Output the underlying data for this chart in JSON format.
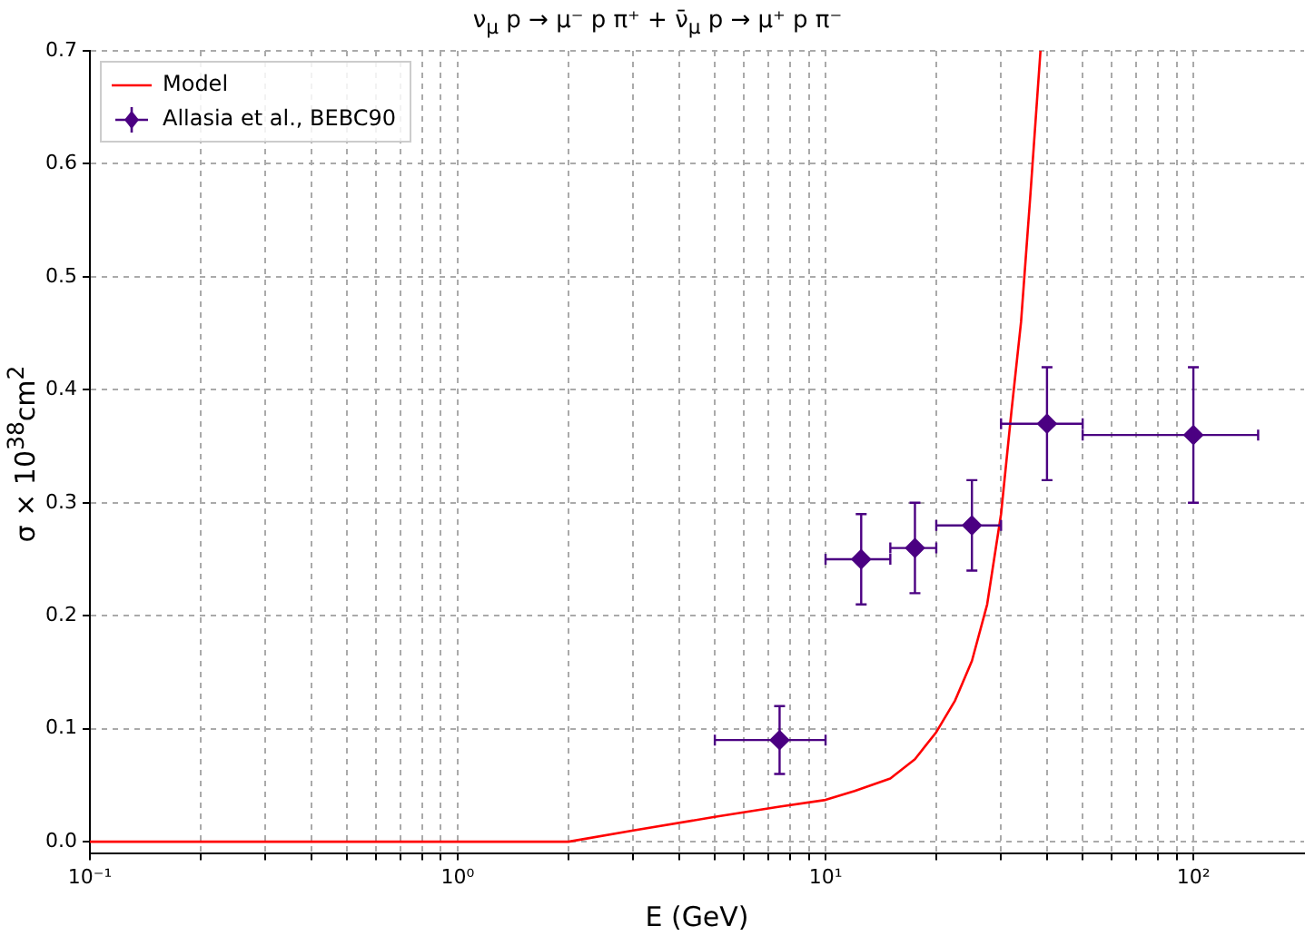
{
  "chart_data": {
    "type": "line",
    "title": "ν$_{μ}$ p → μ⁻ p π⁺ + ν̄$_{μ}$ p → μ⁺ p π⁻",
    "xlabel": "E (GeV)",
    "ylabel": "σ × 10$^{38}$cm$^{2}$",
    "log": "x",
    "grid": true,
    "legend": "top left",
    "xlim": [
      0.1,
      200
    ],
    "ylim": [
      -0.01,
      0.7
    ],
    "xticks": [
      {
        "value": 0.1,
        "label": "10⁻¹"
      },
      {
        "value": 0.2,
        "label": null
      },
      {
        "value": 0.3,
        "label": null
      },
      {
        "value": 0.4,
        "label": null
      },
      {
        "value": 0.5,
        "label": null
      },
      {
        "value": 0.6,
        "label": null
      },
      {
        "value": 0.7,
        "label": null
      },
      {
        "value": 0.8,
        "label": null
      },
      {
        "value": 0.9,
        "label": null
      },
      {
        "value": 1,
        "label": "10⁰"
      },
      {
        "value": 2,
        "label": null
      },
      {
        "value": 3,
        "label": null
      },
      {
        "value": 4,
        "label": null
      },
      {
        "value": 5,
        "label": null
      },
      {
        "value": 6,
        "label": null
      },
      {
        "value": 7,
        "label": null
      },
      {
        "value": 8,
        "label": null
      },
      {
        "value": 9,
        "label": null
      },
      {
        "value": 10,
        "label": "10¹"
      },
      {
        "value": 20,
        "label": null
      },
      {
        "value": 30,
        "label": null
      },
      {
        "value": 40,
        "label": null
      },
      {
        "value": 50,
        "label": null
      },
      {
        "value": 60,
        "label": null
      },
      {
        "value": 70,
        "label": null
      },
      {
        "value": 80,
        "label": null
      },
      {
        "value": 90,
        "label": null
      },
      {
        "value": 100,
        "label": "10²"
      }
    ],
    "yticks": [
      {
        "value": 0,
        "label": "0.0"
      },
      {
        "value": 0.1,
        "label": "0.1"
      },
      {
        "value": 0.2,
        "label": "0.2"
      },
      {
        "value": 0.3,
        "label": "0.3"
      },
      {
        "value": 0.4,
        "label": "0.4"
      },
      {
        "value": 0.5,
        "label": "0.5"
      },
      {
        "value": 0.6,
        "label": "0.6"
      },
      {
        "value": 0.7,
        "label": "0.7"
      }
    ],
    "series": [
      {
        "name": "Model",
        "type": "line",
        "color": "#ff0000",
        "marker": "none",
        "line_style": "solid",
        "x": [
          0.1,
          1,
          2,
          3,
          5,
          7.5,
          10,
          12,
          15,
          17.5,
          20,
          22.5,
          25,
          27.5,
          30,
          32,
          34,
          36,
          38.4
        ],
        "values": [
          0,
          0,
          0,
          0.01,
          0.022,
          0.031,
          0.037,
          0.045,
          0.056,
          0.073,
          0.097,
          0.125,
          0.16,
          0.21,
          0.29,
          0.38,
          0.46,
          0.57,
          0.7
        ]
      },
      {
        "name": "Allasia et al., BEBC90",
        "type": "scatter",
        "color": "#4b0082",
        "marker": "diamond",
        "x": [
          7.5,
          12.5,
          17.5,
          25,
          40,
          100
        ],
        "values": [
          0.09,
          0.25,
          0.26,
          0.28,
          0.37,
          0.36
        ],
        "errors": [
          0.03,
          0.04,
          0.04,
          0.04,
          0.05,
          0.06
        ],
        "xerrors": [
          [
            5,
            10
          ],
          [
            10,
            15
          ],
          [
            15,
            20
          ],
          [
            20,
            30
          ],
          [
            30,
            50
          ],
          [
            50,
            150
          ]
        ]
      }
    ]
  }
}
